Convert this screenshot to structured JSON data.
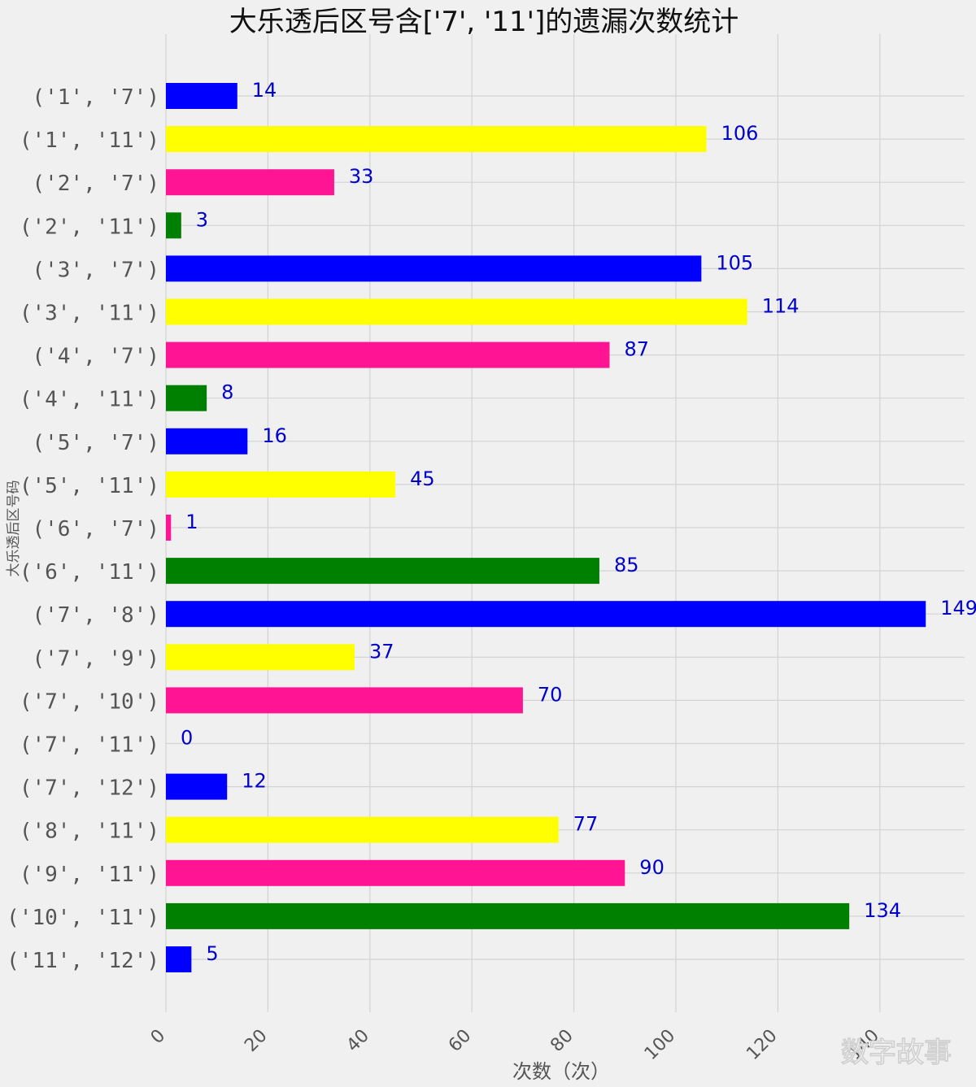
{
  "watermark": "数字故事",
  "chart_data": {
    "type": "bar",
    "orientation": "horizontal",
    "title": "大乐透后区号含['7', '11']的遗漏次数统计",
    "xlabel": "次数（次）",
    "ylabel": "大乐透后区号码",
    "xlim": [
      0,
      156
    ],
    "xticks": [
      0,
      20,
      40,
      60,
      80,
      100,
      120,
      140
    ],
    "xtick_labels": [
      "0",
      "20",
      "40",
      "60",
      "80",
      "100",
      "120",
      "140"
    ],
    "grid": true,
    "bar_colors": [
      "#0000ff",
      "#ffff00",
      "#ff1493",
      "#008000"
    ],
    "categories": [
      "('1', '7')",
      "('1', '11')",
      "('2', '7')",
      "('2', '11')",
      "('3', '7')",
      "('3', '11')",
      "('4', '7')",
      "('4', '11')",
      "('5', '7')",
      "('5', '11')",
      "('6', '7')",
      "('6', '11')",
      "('7', '8')",
      "('7', '9')",
      "('7', '10')",
      "('7', '11')",
      "('7', '12')",
      "('8', '11')",
      "('9', '11')",
      "('10', '11')",
      "('11', '12')"
    ],
    "values": [
      14,
      106,
      33,
      3,
      105,
      114,
      87,
      8,
      16,
      45,
      1,
      85,
      149,
      37,
      70,
      0,
      12,
      77,
      90,
      134,
      5
    ],
    "value_labels": [
      "14",
      "106",
      "33",
      "3",
      "105",
      "114",
      "87",
      "8",
      "16",
      "45",
      "1",
      "85",
      "149",
      "37",
      "70",
      "0",
      "12",
      "77",
      "90",
      "134",
      "5"
    ]
  }
}
